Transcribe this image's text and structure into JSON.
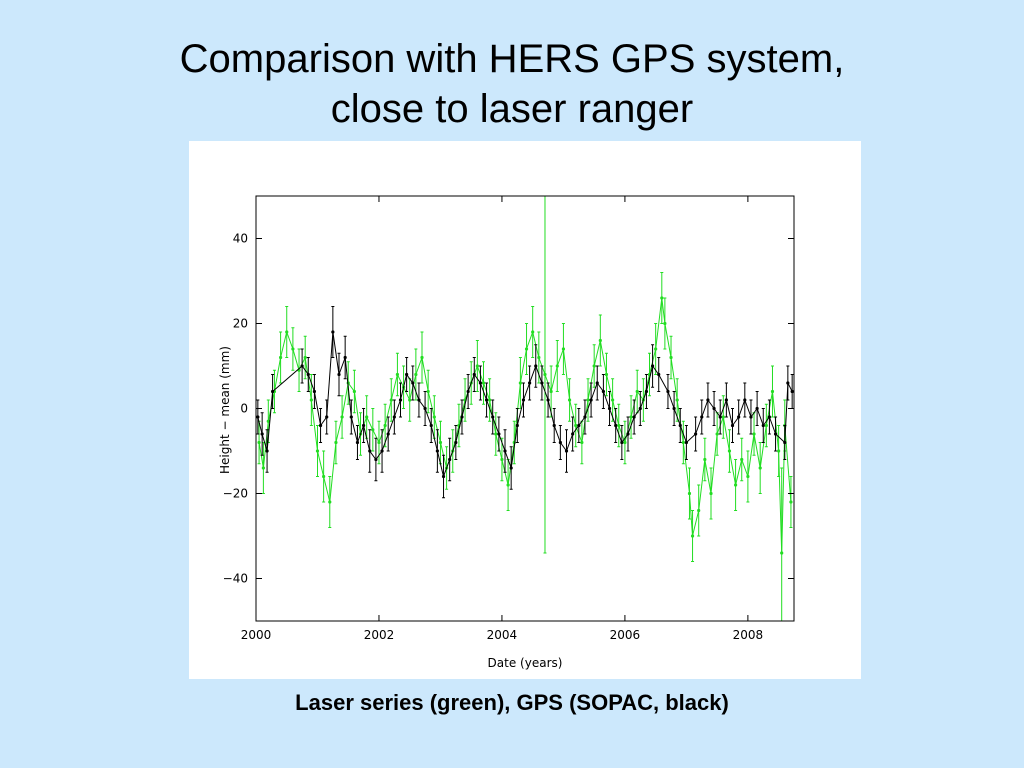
{
  "slide": {
    "title_line1": "Comparison with HERS GPS system,",
    "title_line2": "close to laser ranger",
    "caption": "Laser series (green), GPS (SOPAC, black)",
    "background_color": "#cce8fc"
  },
  "chart_data": {
    "type": "scatter",
    "title": "",
    "xlabel": "Date (years)",
    "ylabel": "Height − mean (mm)",
    "xlim": [
      2000.0,
      2008.75
    ],
    "ylim": [
      -50,
      50
    ],
    "x_ticks": [
      2000,
      2002,
      2004,
      2006,
      2008
    ],
    "y_ticks": [
      -40,
      -20,
      0,
      20,
      40
    ],
    "x_tick_labels": [
      "2000",
      "2002",
      "2004",
      "2006",
      "2008"
    ],
    "y_tick_labels": [
      "−40",
      "−20",
      "0",
      "20",
      "40"
    ],
    "grid": false,
    "series": [
      {
        "color": "#22dd22",
        "error_bars": true,
        "points": [
          {
            "x": 2000.05,
            "y": -8,
            "err": 5
          },
          {
            "x": 2000.12,
            "y": -14,
            "err": 6
          },
          {
            "x": 2000.2,
            "y": -3,
            "err": 5
          },
          {
            "x": 2000.3,
            "y": 4,
            "err": 5
          },
          {
            "x": 2000.4,
            "y": 12,
            "err": 6
          },
          {
            "x": 2000.5,
            "y": 18,
            "err": 6
          },
          {
            "x": 2000.6,
            "y": 14,
            "err": 5
          },
          {
            "x": 2000.7,
            "y": 9,
            "err": 5
          },
          {
            "x": 2000.8,
            "y": 12,
            "err": 5
          },
          {
            "x": 2000.9,
            "y": 2,
            "err": 6
          },
          {
            "x": 2001.0,
            "y": -10,
            "err": 6
          },
          {
            "x": 2001.1,
            "y": -16,
            "err": 6
          },
          {
            "x": 2001.2,
            "y": -22,
            "err": 6
          },
          {
            "x": 2001.3,
            "y": -8,
            "err": 5
          },
          {
            "x": 2001.4,
            "y": -2,
            "err": 5
          },
          {
            "x": 2001.5,
            "y": 6,
            "err": 5
          },
          {
            "x": 2001.6,
            "y": 4,
            "err": 5
          },
          {
            "x": 2001.7,
            "y": -6,
            "err": 5
          },
          {
            "x": 2001.8,
            "y": -2,
            "err": 5
          },
          {
            "x": 2001.9,
            "y": -5,
            "err": 5
          },
          {
            "x": 2002.0,
            "y": -8,
            "err": 5
          },
          {
            "x": 2002.1,
            "y": -4,
            "err": 5
          },
          {
            "x": 2002.2,
            "y": 2,
            "err": 5
          },
          {
            "x": 2002.3,
            "y": 8,
            "err": 5
          },
          {
            "x": 2002.4,
            "y": 5,
            "err": 5
          },
          {
            "x": 2002.5,
            "y": 2,
            "err": 5
          },
          {
            "x": 2002.6,
            "y": 8,
            "err": 6
          },
          {
            "x": 2002.7,
            "y": 12,
            "err": 6
          },
          {
            "x": 2002.8,
            "y": 4,
            "err": 5
          },
          {
            "x": 2002.9,
            "y": -2,
            "err": 5
          },
          {
            "x": 2003.0,
            "y": -8,
            "err": 5
          },
          {
            "x": 2003.1,
            "y": -14,
            "err": 5
          },
          {
            "x": 2003.2,
            "y": -10,
            "err": 5
          },
          {
            "x": 2003.3,
            "y": -4,
            "err": 5
          },
          {
            "x": 2003.4,
            "y": 2,
            "err": 5
          },
          {
            "x": 2003.5,
            "y": 6,
            "err": 5
          },
          {
            "x": 2003.6,
            "y": 10,
            "err": 6
          },
          {
            "x": 2003.7,
            "y": 6,
            "err": 5
          },
          {
            "x": 2003.8,
            "y": 2,
            "err": 5
          },
          {
            "x": 2003.9,
            "y": -6,
            "err": 5
          },
          {
            "x": 2004.0,
            "y": -12,
            "err": 5
          },
          {
            "x": 2004.1,
            "y": -18,
            "err": 6
          },
          {
            "x": 2004.2,
            "y": -8,
            "err": 5
          },
          {
            "x": 2004.3,
            "y": 6,
            "err": 6
          },
          {
            "x": 2004.4,
            "y": 14,
            "err": 6
          },
          {
            "x": 2004.5,
            "y": 18,
            "err": 6
          },
          {
            "x": 2004.6,
            "y": 12,
            "err": 6
          },
          {
            "x": 2004.7,
            "y": 8,
            "err": 42
          },
          {
            "x": 2004.8,
            "y": 4,
            "err": 6
          },
          {
            "x": 2004.9,
            "y": 10,
            "err": 6
          },
          {
            "x": 2005.0,
            "y": 14,
            "err": 6
          },
          {
            "x": 2005.1,
            "y": 2,
            "err": 5
          },
          {
            "x": 2005.2,
            "y": -4,
            "err": 5
          },
          {
            "x": 2005.3,
            "y": -8,
            "err": 5
          },
          {
            "x": 2005.4,
            "y": 2,
            "err": 5
          },
          {
            "x": 2005.5,
            "y": 10,
            "err": 5
          },
          {
            "x": 2005.6,
            "y": 16,
            "err": 6
          },
          {
            "x": 2005.7,
            "y": 8,
            "err": 5
          },
          {
            "x": 2005.8,
            "y": 2,
            "err": 5
          },
          {
            "x": 2005.9,
            "y": -4,
            "err": 5
          },
          {
            "x": 2006.0,
            "y": -8,
            "err": 5
          },
          {
            "x": 2006.1,
            "y": -2,
            "err": 5
          },
          {
            "x": 2006.2,
            "y": 4,
            "err": 5
          },
          {
            "x": 2006.3,
            "y": 2,
            "err": 5
          },
          {
            "x": 2006.4,
            "y": 8,
            "err": 5
          },
          {
            "x": 2006.5,
            "y": 14,
            "err": 6
          },
          {
            "x": 2006.6,
            "y": 26,
            "err": 6
          },
          {
            "x": 2006.65,
            "y": 20,
            "err": 6
          },
          {
            "x": 2006.75,
            "y": 12,
            "err": 5
          },
          {
            "x": 2006.85,
            "y": 2,
            "err": 5
          },
          {
            "x": 2006.95,
            "y": -8,
            "err": 5
          },
          {
            "x": 2007.05,
            "y": -20,
            "err": 6
          },
          {
            "x": 2007.1,
            "y": -30,
            "err": 6
          },
          {
            "x": 2007.2,
            "y": -24,
            "err": 6
          },
          {
            "x": 2007.3,
            "y": -12,
            "err": 5
          },
          {
            "x": 2007.4,
            "y": -20,
            "err": 6
          },
          {
            "x": 2007.5,
            "y": -6,
            "err": 5
          },
          {
            "x": 2007.6,
            "y": -2,
            "err": 5
          },
          {
            "x": 2007.7,
            "y": -10,
            "err": 5
          },
          {
            "x": 2007.8,
            "y": -18,
            "err": 6
          },
          {
            "x": 2007.9,
            "y": -12,
            "err": 5
          },
          {
            "x": 2008.0,
            "y": -16,
            "err": 6
          },
          {
            "x": 2008.1,
            "y": -6,
            "err": 5
          },
          {
            "x": 2008.2,
            "y": -14,
            "err": 6
          },
          {
            "x": 2008.3,
            "y": -4,
            "err": 5
          },
          {
            "x": 2008.4,
            "y": 4,
            "err": 6
          },
          {
            "x": 2008.5,
            "y": -10,
            "err": 6
          },
          {
            "x": 2008.55,
            "y": -34,
            "err": 20
          },
          {
            "x": 2008.6,
            "y": -4,
            "err": 6
          },
          {
            "x": 2008.7,
            "y": -22,
            "err": 6
          }
        ]
      },
      {
        "color": "#000000",
        "error_bars": true,
        "points": [
          {
            "x": 2000.03,
            "y": -2,
            "err": 4
          },
          {
            "x": 2000.1,
            "y": -6,
            "err": 5
          },
          {
            "x": 2000.18,
            "y": -10,
            "err": 5
          },
          {
            "x": 2000.27,
            "y": 4,
            "err": 4
          },
          {
            "x": 2000.75,
            "y": 10,
            "err": 4
          },
          {
            "x": 2000.85,
            "y": 8,
            "err": 4
          },
          {
            "x": 2000.95,
            "y": 4,
            "err": 4
          },
          {
            "x": 2001.05,
            "y": -4,
            "err": 4
          },
          {
            "x": 2001.15,
            "y": -2,
            "err": 4
          },
          {
            "x": 2001.25,
            "y": 18,
            "err": 6
          },
          {
            "x": 2001.35,
            "y": 8,
            "err": 5
          },
          {
            "x": 2001.45,
            "y": 12,
            "err": 5
          },
          {
            "x": 2001.55,
            "y": -2,
            "err": 4
          },
          {
            "x": 2001.65,
            "y": -8,
            "err": 4
          },
          {
            "x": 2001.75,
            "y": -4,
            "err": 4
          },
          {
            "x": 2001.85,
            "y": -10,
            "err": 5
          },
          {
            "x": 2001.95,
            "y": -12,
            "err": 5
          },
          {
            "x": 2002.05,
            "y": -10,
            "err": 5
          },
          {
            "x": 2002.15,
            "y": -6,
            "err": 4
          },
          {
            "x": 2002.25,
            "y": -2,
            "err": 4
          },
          {
            "x": 2002.35,
            "y": 2,
            "err": 4
          },
          {
            "x": 2002.45,
            "y": 8,
            "err": 4
          },
          {
            "x": 2002.55,
            "y": 6,
            "err": 4
          },
          {
            "x": 2002.65,
            "y": 2,
            "err": 4
          },
          {
            "x": 2002.75,
            "y": 0,
            "err": 4
          },
          {
            "x": 2002.85,
            "y": -4,
            "err": 4
          },
          {
            "x": 2002.95,
            "y": -10,
            "err": 5
          },
          {
            "x": 2003.05,
            "y": -16,
            "err": 5
          },
          {
            "x": 2003.15,
            "y": -12,
            "err": 5
          },
          {
            "x": 2003.25,
            "y": -8,
            "err": 4
          },
          {
            "x": 2003.35,
            "y": -2,
            "err": 4
          },
          {
            "x": 2003.45,
            "y": 4,
            "err": 4
          },
          {
            "x": 2003.55,
            "y": 8,
            "err": 4
          },
          {
            "x": 2003.65,
            "y": 6,
            "err": 4
          },
          {
            "x": 2003.75,
            "y": 2,
            "err": 4
          },
          {
            "x": 2003.85,
            "y": -2,
            "err": 4
          },
          {
            "x": 2003.95,
            "y": -6,
            "err": 4
          },
          {
            "x": 2004.05,
            "y": -10,
            "err": 5
          },
          {
            "x": 2004.15,
            "y": -14,
            "err": 5
          },
          {
            "x": 2004.25,
            "y": -4,
            "err": 4
          },
          {
            "x": 2004.35,
            "y": 2,
            "err": 4
          },
          {
            "x": 2004.45,
            "y": 6,
            "err": 4
          },
          {
            "x": 2004.55,
            "y": 10,
            "err": 5
          },
          {
            "x": 2004.65,
            "y": 6,
            "err": 4
          },
          {
            "x": 2004.75,
            "y": 2,
            "err": 4
          },
          {
            "x": 2004.85,
            "y": -4,
            "err": 4
          },
          {
            "x": 2004.95,
            "y": -8,
            "err": 4
          },
          {
            "x": 2005.05,
            "y": -10,
            "err": 5
          },
          {
            "x": 2005.15,
            "y": -6,
            "err": 4
          },
          {
            "x": 2005.25,
            "y": -4,
            "err": 4
          },
          {
            "x": 2005.35,
            "y": -2,
            "err": 4
          },
          {
            "x": 2005.45,
            "y": 2,
            "err": 4
          },
          {
            "x": 2005.55,
            "y": 6,
            "err": 4
          },
          {
            "x": 2005.65,
            "y": 4,
            "err": 4
          },
          {
            "x": 2005.75,
            "y": 0,
            "err": 4
          },
          {
            "x": 2005.85,
            "y": -4,
            "err": 4
          },
          {
            "x": 2005.95,
            "y": -8,
            "err": 4
          },
          {
            "x": 2006.05,
            "y": -6,
            "err": 4
          },
          {
            "x": 2006.15,
            "y": -2,
            "err": 4
          },
          {
            "x": 2006.25,
            "y": 0,
            "err": 4
          },
          {
            "x": 2006.35,
            "y": 4,
            "err": 4
          },
          {
            "x": 2006.45,
            "y": 10,
            "err": 5
          },
          {
            "x": 2006.55,
            "y": 8,
            "err": 4
          },
          {
            "x": 2006.7,
            "y": 4,
            "err": 4
          },
          {
            "x": 2006.8,
            "y": 0,
            "err": 4
          },
          {
            "x": 2006.9,
            "y": -4,
            "err": 4
          },
          {
            "x": 2007.0,
            "y": -8,
            "err": 4
          },
          {
            "x": 2007.15,
            "y": -6,
            "err": 4
          },
          {
            "x": 2007.25,
            "y": -2,
            "err": 4
          },
          {
            "x": 2007.35,
            "y": 2,
            "err": 4
          },
          {
            "x": 2007.45,
            "y": 0,
            "err": 4
          },
          {
            "x": 2007.55,
            "y": -2,
            "err": 4
          },
          {
            "x": 2007.65,
            "y": 2,
            "err": 4
          },
          {
            "x": 2007.75,
            "y": -4,
            "err": 4
          },
          {
            "x": 2007.85,
            "y": -2,
            "err": 4
          },
          {
            "x": 2007.95,
            "y": 2,
            "err": 4
          },
          {
            "x": 2008.05,
            "y": -2,
            "err": 4
          },
          {
            "x": 2008.15,
            "y": 0,
            "err": 4
          },
          {
            "x": 2008.25,
            "y": -4,
            "err": 4
          },
          {
            "x": 2008.35,
            "y": -2,
            "err": 4
          },
          {
            "x": 2008.45,
            "y": -6,
            "err": 4
          },
          {
            "x": 2008.6,
            "y": -8,
            "err": 4
          },
          {
            "x": 2008.65,
            "y": 6,
            "err": 4
          },
          {
            "x": 2008.72,
            "y": 4,
            "err": 4
          }
        ]
      }
    ]
  }
}
